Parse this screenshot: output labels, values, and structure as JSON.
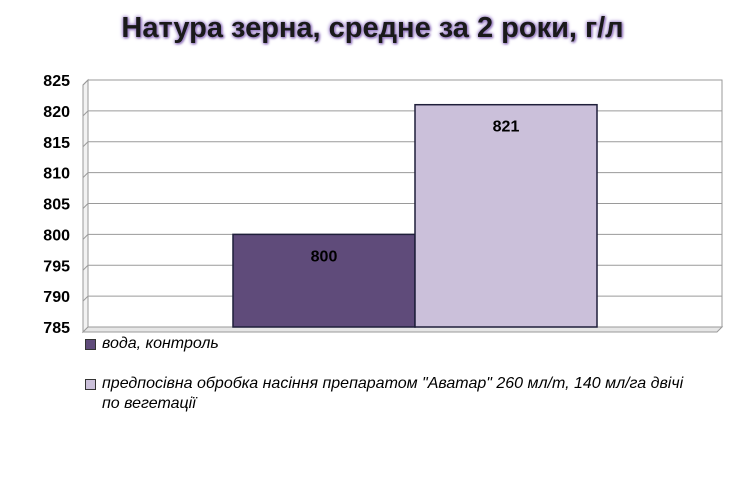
{
  "chart_data": {
    "type": "bar",
    "title": "Натура зерна, средне за 2 роки, г/л",
    "categories": [
      ""
    ],
    "series": [
      {
        "name": "вода, контроль",
        "values": [
          800
        ],
        "color": "#5f4b7a"
      },
      {
        "name": "предпосівна обробка насіння препаратом \"Аватар\" 260 мл/т, 140 мл/га двічі по вегетації",
        "values": [
          821
        ],
        "color": "#cbc0da"
      }
    ],
    "ylim": [
      785,
      825
    ],
    "yticks": [
      785,
      790,
      795,
      800,
      805,
      810,
      815,
      820,
      825
    ],
    "grid": true,
    "legend": "bottom",
    "data_labels": true
  }
}
